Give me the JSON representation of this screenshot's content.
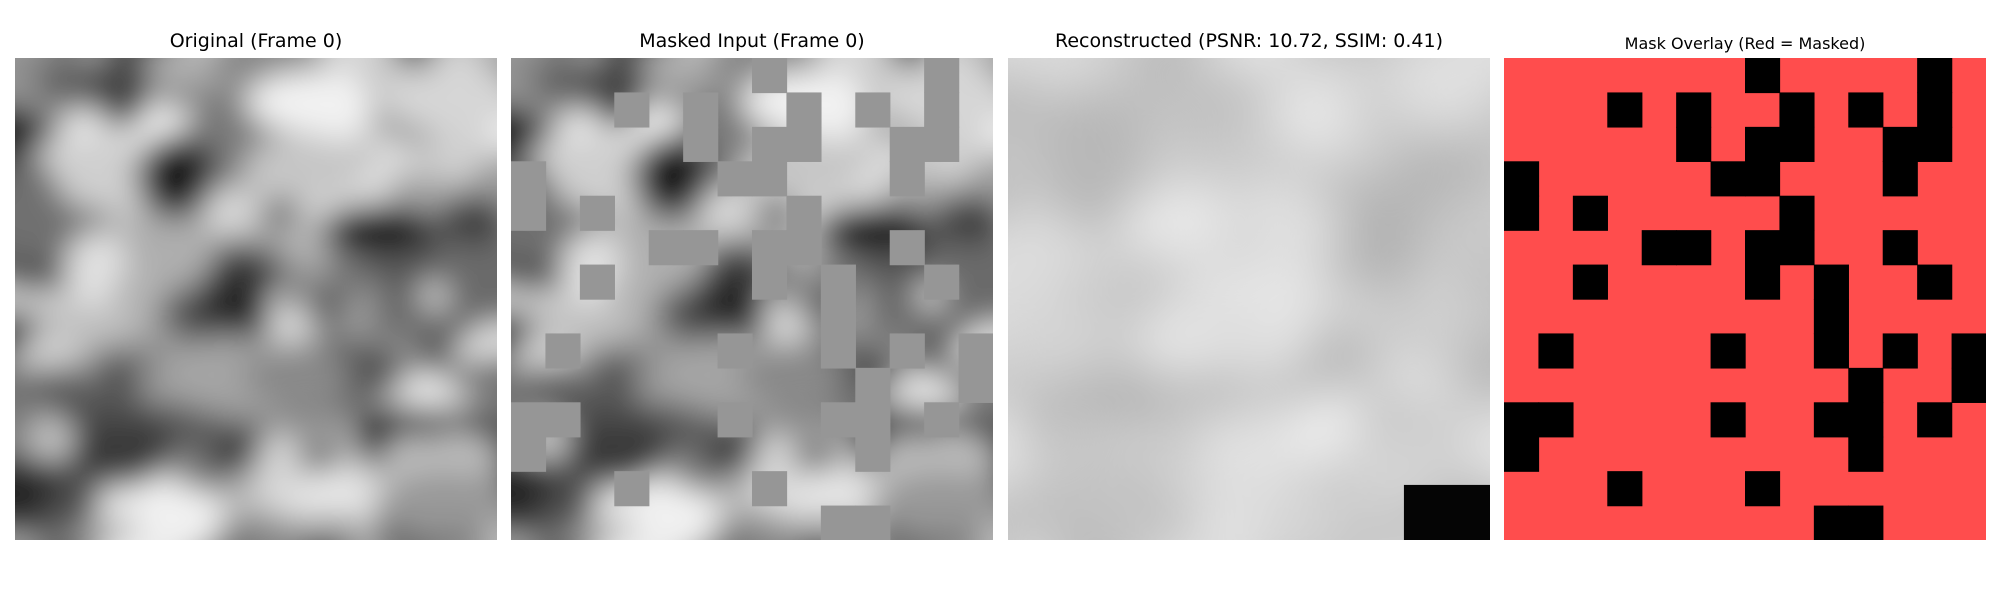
{
  "panels": [
    {
      "title": "Original (Frame 0)"
    },
    {
      "title": "Masked Input (Frame 0)"
    },
    {
      "title": "Reconstructed (PSNR: 10.72, SSIM: 0.41)"
    },
    {
      "title": "Mask Overlay (Red = Masked)"
    }
  ],
  "colors": {
    "masked_red": "#ff4d4d",
    "mask_gray": "#969696",
    "mask_black": "#000000"
  },
  "mask_grid": {
    "rows": 14,
    "cols": 14,
    "unmasked_cells": [
      [
        0,
        7
      ],
      [
        0,
        12
      ],
      [
        1,
        3
      ],
      [
        1,
        5
      ],
      [
        1,
        8
      ],
      [
        1,
        10
      ],
      [
        1,
        12
      ],
      [
        2,
        5
      ],
      [
        2,
        7
      ],
      [
        2,
        8
      ],
      [
        2,
        11
      ],
      [
        2,
        12
      ],
      [
        3,
        0
      ],
      [
        3,
        6
      ],
      [
        3,
        7
      ],
      [
        3,
        11
      ],
      [
        4,
        0
      ],
      [
        4,
        2
      ],
      [
        4,
        8
      ],
      [
        5,
        4
      ],
      [
        5,
        5
      ],
      [
        5,
        7
      ],
      [
        5,
        8
      ],
      [
        5,
        11
      ],
      [
        6,
        2
      ],
      [
        6,
        7
      ],
      [
        6,
        9
      ],
      [
        6,
        12
      ],
      [
        7,
        9
      ],
      [
        8,
        1
      ],
      [
        8,
        6
      ],
      [
        8,
        9
      ],
      [
        8,
        11
      ],
      [
        8,
        13
      ],
      [
        9,
        10
      ],
      [
        9,
        13
      ],
      [
        10,
        0
      ],
      [
        10,
        1
      ],
      [
        10,
        6
      ],
      [
        10,
        9
      ],
      [
        10,
        10
      ],
      [
        10,
        12
      ],
      [
        11,
        0
      ],
      [
        11,
        10
      ],
      [
        12,
        3
      ],
      [
        12,
        7
      ],
      [
        13,
        9
      ],
      [
        13,
        10
      ]
    ]
  }
}
